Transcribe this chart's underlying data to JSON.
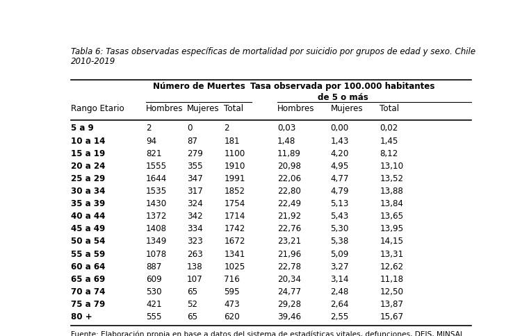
{
  "title_line1": "Tabla 6: Tasas observadas específicas de mortalidad por suicidio por grupos de edad y sexo. Chile",
  "title_line2": "2010-2019",
  "col_group1_header": "Número de Muertes",
  "col_group2_header": "Tasa observada por 100.000 habitantes\nde 5 o más",
  "col_headers": [
    "Rango Etario",
    "Hombres",
    "Mujeres",
    "Total",
    "Hombres",
    "Mujeres",
    "Total"
  ],
  "rows": [
    [
      "5 a 9",
      "2",
      "0",
      "2",
      "0,03",
      "0,00",
      "0,02"
    ],
    [
      "10 a 14",
      "94",
      "87",
      "181",
      "1,48",
      "1,43",
      "1,45"
    ],
    [
      "15 a 19",
      "821",
      "279",
      "1100",
      "11,89",
      "4,20",
      "8,12"
    ],
    [
      "20 a 24",
      "1555",
      "355",
      "1910",
      "20,98",
      "4,95",
      "13,10"
    ],
    [
      "25 a 29",
      "1644",
      "347",
      "1991",
      "22,06",
      "4,77",
      "13,52"
    ],
    [
      "30 a 34",
      "1535",
      "317",
      "1852",
      "22,80",
      "4,79",
      "13,88"
    ],
    [
      "35 a 39",
      "1430",
      "324",
      "1754",
      "22,49",
      "5,13",
      "13,84"
    ],
    [
      "40 a 44",
      "1372",
      "342",
      "1714",
      "21,92",
      "5,43",
      "13,65"
    ],
    [
      "45 a 49",
      "1408",
      "334",
      "1742",
      "22,76",
      "5,30",
      "13,95"
    ],
    [
      "50 a 54",
      "1349",
      "323",
      "1672",
      "23,21",
      "5,38",
      "14,15"
    ],
    [
      "55 a 59",
      "1078",
      "263",
      "1341",
      "21,96",
      "5,09",
      "13,31"
    ],
    [
      "60 a 64",
      "887",
      "138",
      "1025",
      "22,78",
      "3,27",
      "12,62"
    ],
    [
      "65 a 69",
      "609",
      "107",
      "716",
      "20,34",
      "3,14",
      "11,18"
    ],
    [
      "70 a 74",
      "530",
      "65",
      "595",
      "24,77",
      "2,48",
      "12,50"
    ],
    [
      "75 a 79",
      "421",
      "52",
      "473",
      "29,28",
      "2,64",
      "13,87"
    ],
    [
      "80 +",
      "555",
      "65",
      "620",
      "39,46",
      "2,55",
      "15,67"
    ]
  ],
  "footer": "Fuente: Elaboración propia en base a datos del sistema de estadísticas vitales, defunciones, DEIS, MINSAL",
  "background_color": "#ffffff",
  "text_color": "#000000"
}
